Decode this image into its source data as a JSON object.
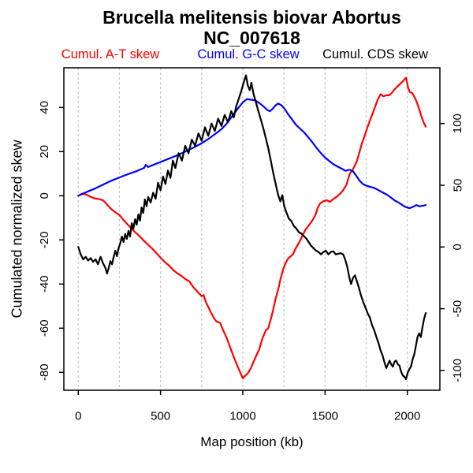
{
  "title": {
    "line1": "Brucella melitensis biovar Abortus",
    "line2": "NC_007618"
  },
  "legend": [
    {
      "label": "Cumul. A-T skew",
      "color": "#ff0000"
    },
    {
      "label": "Cumul. G-C skew",
      "color": "#0000ff"
    },
    {
      "label": "Cumul. CDS skew",
      "color": "#000000"
    }
  ],
  "chart_data": {
    "type": "line",
    "title": "Brucella melitensis biovar Abortus NC_007618",
    "xlabel": "Map position (kb)",
    "ylabel_left": "Cumulated normalized skew",
    "x_ticks": [
      0,
      500,
      1000,
      1500,
      2000
    ],
    "grid_x": [
      0,
      250,
      500,
      750,
      1000,
      1250,
      1500,
      1750,
      2000
    ],
    "left_ticks": [
      -80,
      -60,
      -40,
      -20,
      0,
      20,
      40
    ],
    "right_ticks": [
      -100,
      -50,
      0,
      50,
      100
    ],
    "xlim": [
      -88,
      2198
    ],
    "ylim_left": [
      -88,
      58
    ],
    "ylim_right": [
      -116,
      145
    ],
    "grid": "vertical dashed gridlines every 250 kb",
    "legend_position": "top margin",
    "grid_color": "#c9c9c9",
    "series": [
      {
        "name": "Cumul. A-T skew",
        "color": "#ff0000",
        "axis": "left",
        "x": [
          0,
          25,
          50,
          75,
          100,
          125,
          150,
          175,
          200,
          225,
          250,
          275,
          300,
          325,
          350,
          375,
          400,
          425,
          450,
          475,
          500,
          525,
          550,
          575,
          600,
          625,
          650,
          675,
          700,
          725,
          750,
          762,
          775,
          800,
          825,
          840,
          862,
          875,
          900,
          925,
          950,
          975,
          1000,
          1015,
          1030,
          1050,
          1075,
          1100,
          1120,
          1140,
          1155,
          1170,
          1185,
          1200,
          1215,
          1230,
          1245,
          1260,
          1275,
          1290,
          1305,
          1320,
          1340,
          1360,
          1380,
          1400,
          1420,
          1440,
          1455,
          1470,
          1490,
          1510,
          1530,
          1550,
          1570,
          1590,
          1610,
          1630,
          1650,
          1665,
          1680,
          1695,
          1710,
          1725,
          1740,
          1755,
          1775,
          1790,
          1805,
          1820,
          1838,
          1855,
          1870,
          1890,
          1905,
          1920,
          1940,
          1960,
          1975,
          1992,
          2005,
          2015,
          2030,
          2045,
          2060,
          2075,
          2090,
          2100,
          2112
        ],
        "y": [
          0,
          1,
          0.5,
          -0.5,
          -1.2,
          -1.5,
          -2,
          -4,
          -6,
          -7.5,
          -8.7,
          -11,
          -13,
          -15,
          -16.8,
          -18.5,
          -20.5,
          -22.3,
          -24,
          -26,
          -28,
          -30,
          -31.5,
          -33.5,
          -35,
          -36.2,
          -37.7,
          -38.8,
          -41.5,
          -43.5,
          -45.5,
          -45,
          -48,
          -52,
          -55.5,
          -57,
          -57.5,
          -60,
          -64,
          -69,
          -74,
          -78.5,
          -82.7,
          -81.5,
          -80.5,
          -78,
          -73.5,
          -69.5,
          -64.5,
          -61,
          -60,
          -56,
          -51.5,
          -46.5,
          -42.5,
          -37.5,
          -33.5,
          -30.5,
          -28.5,
          -27.5,
          -26.5,
          -24,
          -21.5,
          -18.5,
          -15.5,
          -13.5,
          -11.5,
          -9,
          -5.5,
          -3.5,
          -2.5,
          -2,
          -2.8,
          -1.5,
          -0.5,
          0.8,
          2.5,
          5,
          10,
          11.5,
          13.5,
          16,
          20,
          24,
          27,
          30.5,
          34.5,
          37.5,
          40.5,
          43.5,
          46,
          45,
          45.5,
          45.5,
          46.5,
          48,
          49.5,
          51,
          52,
          53.5,
          49,
          47,
          46.5,
          44.5,
          42,
          38.5,
          35,
          33,
          31.3
        ]
      },
      {
        "name": "Cumul. G-C skew",
        "color": "#0000ff",
        "axis": "left",
        "x": [
          0,
          30,
          60,
          100,
          150,
          200,
          250,
          300,
          350,
          400,
          410,
          425,
          450,
          500,
          550,
          600,
          650,
          700,
          750,
          800,
          850,
          875,
          900,
          925,
          950,
          975,
          1000,
          1025,
          1050,
          1075,
          1100,
          1125,
          1150,
          1165,
          1180,
          1200,
          1215,
          1235,
          1255,
          1275,
          1300,
          1325,
          1350,
          1375,
          1400,
          1425,
          1450,
          1475,
          1500,
          1525,
          1550,
          1575,
          1600,
          1625,
          1650,
          1671,
          1690,
          1710,
          1730,
          1750,
          1775,
          1800,
          1825,
          1850,
          1875,
          1900,
          1925,
          1950,
          1975,
          1995,
          2015,
          2035,
          2055,
          2075,
          2095,
          2112
        ],
        "y": [
          0,
          1,
          2,
          3.2,
          5,
          6.8,
          8.3,
          9.7,
          11,
          12.6,
          14,
          13,
          13.8,
          15.3,
          16.8,
          18.3,
          20,
          21.8,
          23.8,
          26.2,
          29,
          30.5,
          32.5,
          35,
          37.5,
          40,
          42.3,
          43.8,
          43.5,
          43.2,
          42,
          40.5,
          38.8,
          38.3,
          39.3,
          41,
          41.8,
          41,
          39.3,
          37,
          34.5,
          32,
          30.3,
          28.5,
          26.3,
          24,
          21.5,
          19.3,
          17.3,
          15.8,
          14.3,
          13.3,
          12.3,
          11.3,
          11.8,
          11,
          9,
          6.8,
          5.3,
          4.6,
          4,
          3.5,
          2.5,
          1.5,
          0.5,
          -0.8,
          -2.2,
          -3.2,
          -4.5,
          -5.3,
          -5.6,
          -5,
          -4.2,
          -4.8,
          -4.5,
          -4.2
        ]
      },
      {
        "name": "Cumul. CDS skew",
        "color": "#000000",
        "axis": "right",
        "x": [
          0,
          15,
          30,
          45,
          60,
          75,
          90,
          105,
          120,
          135,
          150,
          165,
          175,
          185,
          195,
          205,
          215,
          225,
          235,
          245,
          255,
          265,
          275,
          285,
          295,
          305,
          315,
          325,
          335,
          345,
          355,
          365,
          375,
          385,
          395,
          405,
          415,
          425,
          440,
          455,
          470,
          485,
          500,
          515,
          530,
          545,
          560,
          575,
          590,
          610,
          630,
          650,
          670,
          690,
          710,
          730,
          750,
          770,
          790,
          810,
          830,
          850,
          870,
          890,
          910,
          930,
          945,
          960,
          975,
          990,
          1005,
          1019,
          1030,
          1042,
          1052,
          1065,
          1080,
          1095,
          1110,
          1125,
          1140,
          1155,
          1170,
          1185,
          1200,
          1215,
          1228,
          1240,
          1252,
          1265,
          1280,
          1295,
          1310,
          1325,
          1340,
          1355,
          1370,
          1385,
          1400,
          1415,
          1430,
          1445,
          1460,
          1475,
          1490,
          1505,
          1520,
          1535,
          1550,
          1565,
          1580,
          1595,
          1610,
          1622,
          1635,
          1648,
          1658,
          1670,
          1682,
          1694,
          1706,
          1718,
          1730,
          1745,
          1760,
          1772,
          1785,
          1800,
          1812,
          1825,
          1838,
          1850,
          1862,
          1872,
          1882,
          1892,
          1902,
          1912,
          1922,
          1932,
          1942,
          1952,
          1962,
          1972,
          1982,
          1992,
          2002,
          2012,
          2022,
          2032,
          2042,
          2052,
          2062,
          2072,
          2082,
          2092,
          2102,
          2112
        ],
        "y": [
          0,
          -6,
          -10,
          -8,
          -11,
          -9,
          -12,
          -10,
          -14,
          -8,
          -13,
          -17,
          -21.5,
          -17,
          -11.5,
          -14,
          -8,
          -3,
          -7.5,
          -1,
          3,
          8.5,
          4,
          10.4,
          6.6,
          13,
          8.5,
          19.3,
          14.9,
          22.5,
          18,
          26.4,
          21.3,
          32,
          27.6,
          38.5,
          33,
          40.5,
          36,
          44,
          39,
          52,
          46,
          57,
          51,
          62,
          56,
          70,
          64,
          76,
          70,
          82,
          76,
          87,
          82,
          92,
          86,
          97,
          90,
          100,
          94,
          104,
          98,
          107,
          101,
          110,
          105,
          114,
          120,
          126,
          133,
          139,
          131,
          127,
          133,
          124,
          117,
          110,
          103,
          96,
          88,
          80,
          70,
          60,
          51,
          42,
          37,
          42,
          33,
          28,
          23,
          21,
          17,
          15,
          12,
          11,
          9,
          7,
          4,
          1,
          -1,
          -3,
          -4,
          -6,
          -4,
          -3,
          -6,
          -4,
          -3.5,
          -6,
          -5.5,
          -5,
          -6,
          -10,
          -16,
          -25,
          -30,
          -25,
          -23,
          -28,
          -33,
          -39,
          -44,
          -49,
          -54,
          -57,
          -63,
          -68,
          -73,
          -78,
          -84,
          -88,
          -94,
          -98,
          -95,
          -92,
          -95,
          -97,
          -93,
          -92,
          -95,
          -96,
          -101,
          -104,
          -105,
          -107,
          -102,
          -99,
          -97,
          -91,
          -87,
          -80,
          -73,
          -70,
          -73,
          -65,
          -58,
          -53.5
        ]
      }
    ]
  }
}
